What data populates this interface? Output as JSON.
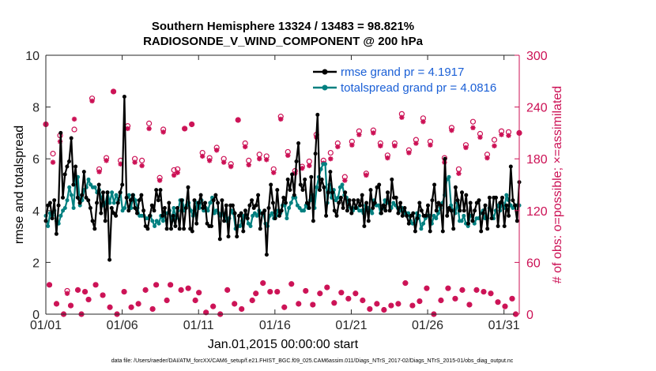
{
  "chart_data": {
    "type": "line",
    "title": "Southern Hemisphere 13324 / 13483 = 98.821%",
    "subtitle": "RADIOSONDE_V_WIND_COMPONENT @ 200 hPa",
    "xlabel": "Jan.01,2015 00:00:00 start",
    "ylabel": "rmse and totalspread",
    "ylabel_right": "# of obs: o=possible; ×=assimilated",
    "footnote": "data file: /Users/raeder/DAI/ATM_forcXX/CAM6_setup/f.e21.FHIST_BGC.f09_025.CAM6assim.011/Diags_NTrS_2017-02/Diags_NTrS_2015-01/obs_diag_output.nc",
    "xlim": [
      1,
      32
    ],
    "ylim": [
      0,
      10
    ],
    "ylim_right": [
      0,
      300
    ],
    "xticks": [
      1,
      6,
      11,
      16,
      21,
      26,
      31
    ],
    "xtick_labels": [
      "01/01",
      "01/06",
      "01/11",
      "01/16",
      "01/21",
      "01/26",
      "01/31"
    ],
    "yticks": [
      0,
      2,
      4,
      6,
      8,
      10
    ],
    "ytick_labels": [
      "0",
      "2",
      "4",
      "6",
      "8",
      "10"
    ],
    "yticks_right": [
      0,
      60,
      120,
      180,
      240,
      300
    ],
    "ytick_labels_right": [
      "0",
      "60",
      "120",
      "180",
      "240",
      "300"
    ],
    "legend_position": "top-right",
    "series": [
      {
        "name": "rmse grand pr = 4.1917",
        "color": "#000000",
        "values": [
          3.6,
          4.2,
          4.3,
          3.7,
          4.4,
          3.1,
          4.2,
          7.0,
          4.5,
          5.4,
          5.7,
          5.9,
          6.8,
          5.0,
          5.7,
          4.5,
          4.3,
          4.6,
          5.5,
          4.5,
          4.4,
          4.1,
          3.6,
          3.3,
          4.3,
          5.0,
          3.9,
          4.7,
          3.6,
          4.7,
          2.1,
          4.1,
          3.9,
          3.8,
          4.3,
          4.7,
          5.0,
          8.4,
          4.5,
          4.0,
          4.4,
          4.6,
          4.1,
          3.9,
          4.4,
          4.6,
          4.0,
          3.4,
          3.3,
          3.8,
          4.2,
          4.0,
          4.8,
          4.4,
          4.8,
          3.8,
          4.1,
          3.3,
          4.3,
          3.3,
          3.8,
          3.4,
          4.1,
          3.3,
          4.4,
          3.3,
          4.1,
          4.9,
          3.3,
          3.2,
          4.4,
          3.5,
          4.3,
          4.6,
          4.1,
          4.3,
          3.5,
          3.4,
          3.4,
          4.4,
          4.6,
          4.3,
          2.9,
          4.4,
          3.6,
          4.2,
          3.0,
          4.2,
          4.2,
          3.9,
          3.0,
          3.8,
          3.9,
          3.2,
          4.0,
          3.7,
          4.2,
          4.4,
          4.1,
          4.2,
          4.6,
          3.3,
          3.9,
          4.0,
          2.3,
          4.1,
          5.0,
          4.3,
          3.7,
          4.8,
          3.8,
          4.0,
          4.5,
          4.3,
          5.2,
          4.8,
          5.4,
          4.6,
          5.9,
          6.6,
          5.0,
          4.8,
          5.2,
          4.3,
          4.1,
          5.3,
          3.6,
          6.2,
          7.7,
          4.8,
          5.2,
          4.9,
          3.8,
          4.7,
          5.5,
          4.7,
          4.0,
          3.8,
          4.3,
          4.5,
          4.1,
          4.7,
          4.0,
          4.4,
          3.9,
          4.4,
          4.1,
          4.4,
          4.2,
          4.6,
          3.4,
          4.3,
          3.6,
          4.8,
          4.1,
          4.3,
          4.9,
          5.0,
          3.9,
          4.2,
          4.0,
          4.7,
          4.0,
          5.2,
          4.5,
          4.5,
          3.9,
          4.3,
          3.8,
          4.1,
          3.8,
          3.5,
          3.8,
          3.9,
          3.2,
          3.7,
          4.3,
          4.0,
          3.8,
          3.8,
          4.2,
          3.2,
          4.4,
          5.0,
          4.0,
          4.3,
          4.2,
          3.2,
          6.0,
          3.8,
          4.1,
          4.0,
          3.3,
          4.9,
          4.4,
          4.0,
          4.7,
          4.0,
          4.6,
          3.5,
          4.3,
          3.6,
          4.0,
          4.3,
          4.4,
          3.2,
          3.9,
          4.2,
          3.3,
          4.5,
          3.7,
          4.5,
          4.5,
          3.4,
          4.3,
          4.5,
          3.4,
          4.2,
          3.8,
          5.7,
          4.4,
          4.2,
          3.6,
          5.1
        ]
      },
      {
        "name": "totalspread grand pr = 4.0816",
        "color": "#008080",
        "values": [
          3.8,
          3.4,
          3.9,
          3.8,
          4.0,
          3.6,
          3.5,
          3.8,
          4.0,
          4.1,
          4.4,
          4.9,
          4.6,
          4.1,
          5.3,
          5.3,
          4.2,
          4.4,
          4.8,
          4.9,
          5.2,
          5.0,
          4.9,
          4.9,
          4.7,
          4.8,
          4.5,
          4.2,
          4.3,
          4.7,
          4.3,
          4.7,
          4.3,
          4.6,
          4.4,
          4.7,
          4.0,
          4.1,
          4.5,
          4.6,
          4.1,
          4.6,
          4.4,
          4.1,
          3.8,
          3.8,
          3.8,
          3.7,
          3.7,
          3.8,
          3.6,
          3.4,
          3.6,
          3.5,
          3.8,
          3.6,
          3.9,
          3.9,
          4.0,
          3.6,
          4.1,
          3.7,
          4.0,
          4.4,
          4.4,
          4.0,
          4.2,
          4.3,
          4.0,
          3.8,
          3.9,
          4.3,
          4.1,
          4.4,
          4.0,
          4.1,
          4.0,
          4.3,
          4.5,
          3.9,
          4.0,
          3.9,
          3.8,
          3.9,
          3.8,
          3.6,
          3.7,
          4.0,
          3.9,
          3.3,
          3.4,
          3.4,
          3.6,
          3.8,
          3.8,
          3.5,
          3.4,
          3.8,
          3.9,
          3.8,
          4.0,
          3.9,
          3.9,
          3.5,
          3.4,
          3.8,
          3.9,
          3.7,
          3.8,
          4.0,
          3.9,
          4.2,
          4.2,
          3.7,
          4.1,
          4.3,
          4.5,
          4.5,
          4.2,
          4.1,
          4.0,
          4.0,
          4.2,
          4.1,
          4.4,
          4.6,
          4.1,
          4.9,
          5.3,
          5.6,
          5.8,
          5.8,
          4.3,
          5.0,
          4.5,
          4.8,
          4.4,
          4.5,
          4.9,
          5.0,
          4.6,
          4.5,
          4.3,
          4.1,
          4.0,
          4.1,
          4.1,
          4.0,
          4.0,
          3.9,
          4.2,
          4.1,
          4.0,
          3.9,
          4.4,
          4.2,
          4.2,
          3.9,
          4.1,
          4.4,
          4.3,
          4.3,
          4.1,
          4.3,
          4.2,
          4.1,
          4.0,
          4.1,
          3.9,
          3.9,
          3.9,
          3.6,
          3.5,
          3.5,
          3.9,
          3.8,
          3.3,
          3.5,
          3.7,
          3.8,
          3.8,
          3.5,
          3.8,
          3.7,
          3.9,
          4.1,
          4.3,
          4.6,
          5.2,
          5.3,
          4.2,
          4.0,
          3.9,
          4.3,
          3.6,
          3.6,
          3.8,
          3.5,
          3.4,
          3.8,
          3.8,
          3.5,
          3.7,
          3.7,
          3.9,
          4.0,
          3.7,
          3.7,
          4.1,
          4.0,
          3.7,
          4.0,
          4.2,
          4.0,
          4.3,
          4.1,
          4.6,
          4.4,
          4.2,
          4.1,
          4.2,
          4.2,
          4.2
        ]
      },
      {
        "name": "possible obs (o)",
        "color": "#cc1155",
        "values": [
          220,
          34,
          186,
          12,
          207,
          0,
          27,
          10,
          214,
          28,
          0,
          26,
          17,
          250,
          34,
          168,
          22,
          181,
          8,
          258,
          0,
          178,
          26,
          218,
          8,
          180,
          12,
          178,
          28,
          221,
          6,
          34,
          158,
          214,
          16,
          34,
          167,
          168,
          28,
          215,
          30,
          220,
          16,
          25,
          187,
          2,
          181,
          9,
          193,
          0,
          180,
          28,
          174,
          12,
          225,
          6,
          198,
          178,
          16,
          24,
          185,
          36,
          183,
          26,
          168,
          26,
          229,
          8,
          188,
          35,
          166,
          12,
          171,
          27,
          177,
          11,
          208,
          24,
          178,
          31,
          187,
          13,
          198,
          25,
          159,
          18,
          200,
          24,
          212,
          16,
          163,
          6,
          213,
          12,
          198,
          5,
          184,
          10,
          198,
          12,
          232,
          36,
          190,
          10,
          202,
          15,
          227,
          30,
          200,
          0,
          262,
          16,
          181,
          30,
          216,
          18,
          168,
          28,
          196,
          11,
          223,
          28,
          209,
          26,
          185,
          24,
          202,
          14,
          212,
          9,
          211,
          18,
          0,
          210
        ]
      },
      {
        "name": "assimilated obs (×)",
        "color": "#cc1155",
        "values": [
          220,
          34,
          176,
          12,
          200,
          0,
          24,
          10,
          226,
          28,
          0,
          26,
          17,
          247,
          34,
          165,
          22,
          178,
          8,
          258,
          0,
          174,
          26,
          215,
          8,
          176,
          12,
          172,
          28,
          215,
          6,
          34,
          155,
          211,
          16,
          34,
          161,
          164,
          28,
          215,
          30,
          220,
          16,
          25,
          183,
          2,
          178,
          9,
          190,
          0,
          176,
          28,
          171,
          12,
          225,
          6,
          194,
          173,
          16,
          24,
          180,
          36,
          179,
          26,
          164,
          26,
          226,
          8,
          184,
          35,
          163,
          12,
          169,
          27,
          172,
          11,
          205,
          24,
          175,
          31,
          180,
          13,
          194,
          25,
          155,
          18,
          196,
          24,
          208,
          16,
          161,
          6,
          210,
          12,
          195,
          5,
          181,
          10,
          195,
          12,
          228,
          36,
          187,
          10,
          198,
          15,
          223,
          30,
          196,
          0,
          262,
          16,
          176,
          30,
          213,
          18,
          163,
          28,
          193,
          11,
          216,
          28,
          205,
          26,
          181,
          24,
          195,
          14,
          208,
          9,
          207,
          18,
          0,
          210
        ]
      }
    ]
  }
}
